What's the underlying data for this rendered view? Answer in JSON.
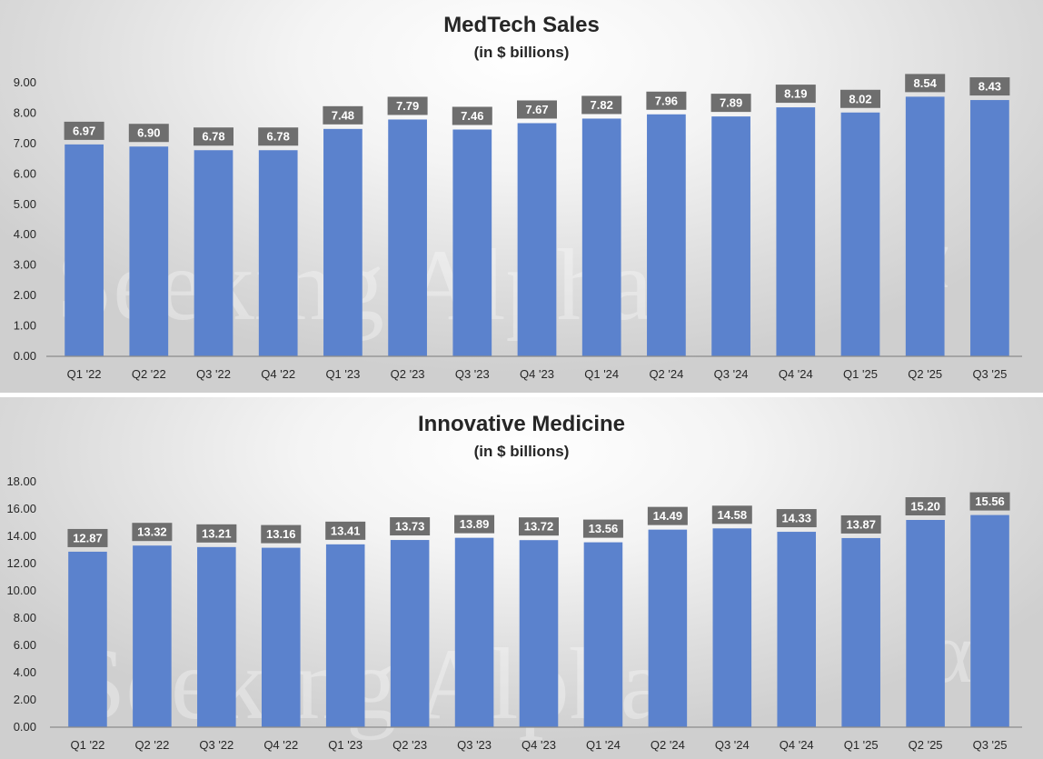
{
  "watermark": {
    "text": "Seeking Alpha",
    "symbol": "α"
  },
  "colors": {
    "bar": "#5b82cd",
    "label_bg": "#6e6e6e",
    "label_text": "#ffffff",
    "axis_text": "#262626"
  },
  "chart_data": [
    {
      "type": "bar",
      "title": "MedTech Sales",
      "subtitle": "(in $ billions)",
      "xlabel": "",
      "ylabel": "",
      "categories": [
        "Q1 '22",
        "Q2 '22",
        "Q3 '22",
        "Q4 '22",
        "Q1 '23",
        "Q2 '23",
        "Q3 '23",
        "Q4 '23",
        "Q1 '24",
        "Q2 '24",
        "Q3 '24",
        "Q4 '24",
        "Q1 '25",
        "Q2 '25",
        "Q3 '25"
      ],
      "values": [
        6.97,
        6.9,
        6.78,
        6.78,
        7.48,
        7.79,
        7.46,
        7.67,
        7.82,
        7.96,
        7.89,
        8.19,
        8.02,
        8.54,
        8.43
      ],
      "value_labels": [
        "6.97",
        "6.90",
        "6.78",
        "6.78",
        "7.48",
        "7.79",
        "7.46",
        "7.67",
        "7.82",
        "7.96",
        "7.89",
        "8.19",
        "8.02",
        "8.54",
        "8.43"
      ],
      "yticks": [
        "0.00",
        "1.00",
        "2.00",
        "3.00",
        "4.00",
        "5.00",
        "6.00",
        "7.00",
        "8.00",
        "9.00"
      ],
      "ylim": [
        0,
        9
      ],
      "grid": false
    },
    {
      "type": "bar",
      "title": "Innovative Medicine",
      "subtitle": "(in $ billions)",
      "xlabel": "",
      "ylabel": "",
      "categories": [
        "Q1 '22",
        "Q2 '22",
        "Q3 '22",
        "Q4 '22",
        "Q1 '23",
        "Q2 '23",
        "Q3 '23",
        "Q4 '23",
        "Q1 '24",
        "Q2 '24",
        "Q3 '24",
        "Q4 '24",
        "Q1 '25",
        "Q2 '25",
        "Q3 '25"
      ],
      "values": [
        12.87,
        13.32,
        13.21,
        13.16,
        13.41,
        13.73,
        13.89,
        13.72,
        13.56,
        14.49,
        14.58,
        14.33,
        13.87,
        15.2,
        15.56
      ],
      "value_labels": [
        "12.87",
        "13.32",
        "13.21",
        "13.16",
        "13.41",
        "13.73",
        "13.89",
        "13.72",
        "13.56",
        "14.49",
        "14.58",
        "14.33",
        "13.87",
        "15.20",
        "15.56"
      ],
      "yticks": [
        "0.00",
        "2.00",
        "4.00",
        "6.00",
        "8.00",
        "10.00",
        "12.00",
        "14.00",
        "16.00",
        "18.00"
      ],
      "ylim": [
        0,
        18
      ],
      "grid": false
    }
  ]
}
